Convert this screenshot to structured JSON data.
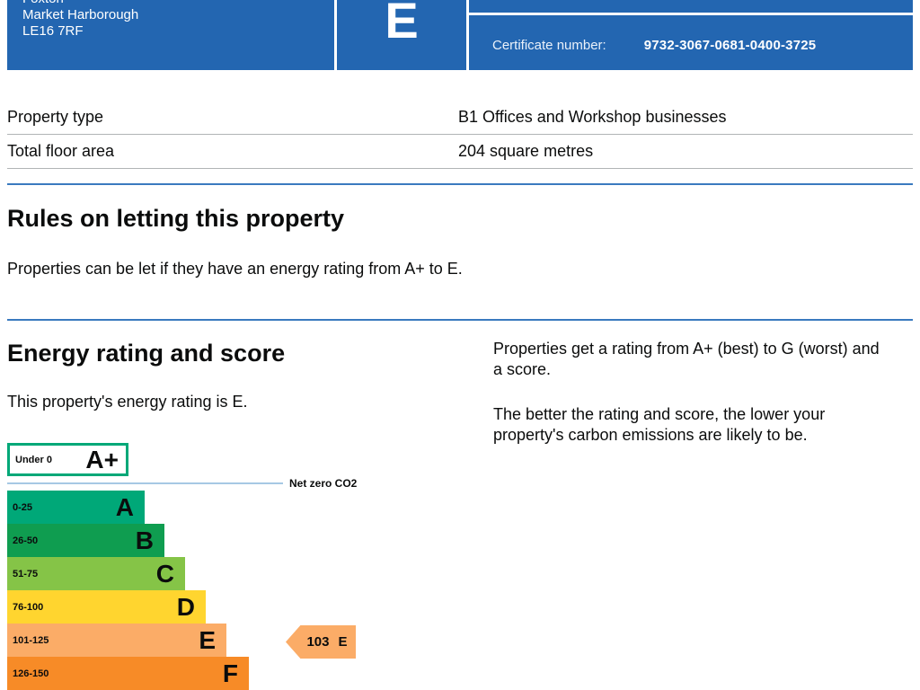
{
  "header": {
    "address_lines": [
      "Foxton",
      "Market Harborough",
      "LE16 7RF"
    ],
    "rating_letter": "E",
    "certificate_label": "Certificate number:",
    "certificate_number": "9732-3067-0681-0400-3725",
    "background_color": "#2366b1"
  },
  "summary_table": {
    "rows": [
      {
        "label": "Property type",
        "value": "B1 Offices and Workshop businesses"
      },
      {
        "label": "Total floor area",
        "value": "204 square metres"
      }
    ]
  },
  "rules_section": {
    "heading": "Rules on letting this property",
    "body": "Properties can be let if they have an energy rating from A+ to E."
  },
  "rating_section": {
    "heading": "Energy rating and score",
    "rating_text": "This property's energy rating is E.",
    "info_paragraph_1": "Properties get a rating from A+ (best) to G (worst) and a score.",
    "info_paragraph_2": "The better the rating and score, the lower your property's carbon emissions are likely to be."
  },
  "chart_data": {
    "type": "bar",
    "title": "Energy rating and score",
    "bands": [
      {
        "range": "Under 0",
        "letter": "A+",
        "fill": "#ffffff",
        "border": "#00a878"
      },
      {
        "range": "0-25",
        "letter": "A",
        "fill": "#00a878"
      },
      {
        "range": "26-50",
        "letter": "B",
        "fill": "#0f9d50"
      },
      {
        "range": "51-75",
        "letter": "C",
        "fill": "#85c447"
      },
      {
        "range": "76-100",
        "letter": "D",
        "fill": "#ffd52f"
      },
      {
        "range": "101-125",
        "letter": "E",
        "fill": "#fbac67"
      },
      {
        "range": "126-150",
        "letter": "F",
        "fill": "#f78b27"
      }
    ],
    "net_zero_label": "Net zero CO2",
    "net_zero_line_color": "#a6c8e4",
    "marker": {
      "value": 103,
      "band": "E",
      "fill": "#fbac67"
    },
    "legend_position": "none"
  }
}
